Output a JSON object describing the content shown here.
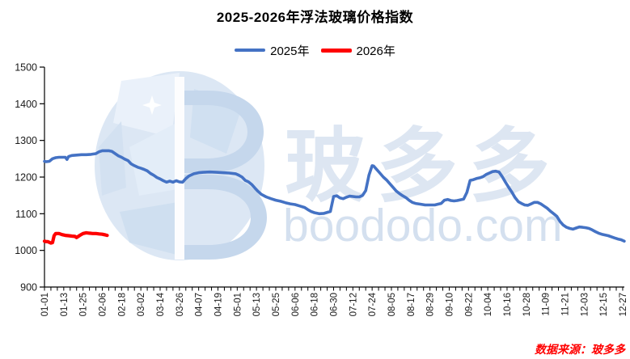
{
  "title": "2025-2026年浮法玻璃价格指数",
  "legend": {
    "items": [
      {
        "label": "2025年",
        "color": "#4472C4"
      },
      {
        "label": "2026年",
        "color": "#FE0000"
      }
    ]
  },
  "source_note": "数据来源：玻多多",
  "watermark": {
    "letter": "B",
    "cn_text": "玻多多",
    "domain_text": "boododo.com",
    "color": "#c2d3e9"
  },
  "colors": {
    "axis": "#000000",
    "tick_label": "#1a1a1a",
    "series_2025": "#4472C4",
    "series_2026": "#FE0000",
    "globe_base": "#dce7f4"
  },
  "chart_data": {
    "type": "line",
    "title": "2025-2026年浮法玻璃价格指数",
    "xlabel": "",
    "ylabel": "",
    "grid": false,
    "legend_position": "top-center",
    "y_axis": {
      "min": 900,
      "max": 1500,
      "tick_step": 100,
      "tick_labels": [
        "900",
        "1000",
        "1100",
        "1200",
        "1300",
        "1400",
        "1500"
      ]
    },
    "x_axis": {
      "minor_tick_interval_days": 4,
      "tick_labels": [
        "01-01",
        "01-13",
        "01-25",
        "02-06",
        "02-18",
        "03-02",
        "03-14",
        "03-26",
        "04-07",
        "04-19",
        "05-01",
        "05-13",
        "05-25",
        "06-06",
        "06-18",
        "06-30",
        "07-12",
        "07-24",
        "08-05",
        "08-17",
        "08-29",
        "09-10",
        "09-22",
        "10-04",
        "10-16",
        "10-28",
        "11-09",
        "11-21",
        "12-03",
        "12-15",
        "12-27"
      ]
    },
    "series": [
      {
        "name": "2025年",
        "color": "#4472C4",
        "points": [
          [
            "01-01",
            1243
          ],
          [
            "01-02",
            1242
          ],
          [
            "01-04",
            1243
          ],
          [
            "01-06",
            1250
          ],
          [
            "01-08",
            1253
          ],
          [
            "01-10",
            1254
          ],
          [
            "01-12",
            1254
          ],
          [
            "01-14",
            1254
          ],
          [
            "01-15",
            1248
          ],
          [
            "01-16",
            1256
          ],
          [
            "01-18",
            1259
          ],
          [
            "01-21",
            1260
          ],
          [
            "01-24",
            1261
          ],
          [
            "01-27",
            1261
          ],
          [
            "01-30",
            1262
          ],
          [
            "02-02",
            1264
          ],
          [
            "02-04",
            1269
          ],
          [
            "02-06",
            1272
          ],
          [
            "02-08",
            1272
          ],
          [
            "02-10",
            1272
          ],
          [
            "02-12",
            1270
          ],
          [
            "02-14",
            1264
          ],
          [
            "02-16",
            1258
          ],
          [
            "02-18",
            1254
          ],
          [
            "02-20",
            1249
          ],
          [
            "02-22",
            1245
          ],
          [
            "02-24",
            1236
          ],
          [
            "02-26",
            1231
          ],
          [
            "02-28",
            1227
          ],
          [
            "03-02",
            1224
          ],
          [
            "03-04",
            1221
          ],
          [
            "03-06",
            1217
          ],
          [
            "03-08",
            1210
          ],
          [
            "03-10",
            1205
          ],
          [
            "03-12",
            1199
          ],
          [
            "03-14",
            1195
          ],
          [
            "03-16",
            1190
          ],
          [
            "03-18",
            1186
          ],
          [
            "03-20",
            1189
          ],
          [
            "03-22",
            1186
          ],
          [
            "03-24",
            1190
          ],
          [
            "03-26",
            1187
          ],
          [
            "03-28",
            1186
          ],
          [
            "03-30",
            1196
          ],
          [
            "04-01",
            1203
          ],
          [
            "04-04",
            1209
          ],
          [
            "04-07",
            1212
          ],
          [
            "04-10",
            1213
          ],
          [
            "04-14",
            1214
          ],
          [
            "04-18",
            1213
          ],
          [
            "04-22",
            1212
          ],
          [
            "04-26",
            1211
          ],
          [
            "04-30",
            1209
          ],
          [
            "05-02",
            1205
          ],
          [
            "05-04",
            1200
          ],
          [
            "05-06",
            1191
          ],
          [
            "05-08",
            1187
          ],
          [
            "05-10",
            1180
          ],
          [
            "05-12",
            1170
          ],
          [
            "05-14",
            1161
          ],
          [
            "05-16",
            1153
          ],
          [
            "05-19",
            1146
          ],
          [
            "05-22",
            1141
          ],
          [
            "05-25",
            1137
          ],
          [
            "05-28",
            1134
          ],
          [
            "05-31",
            1130
          ],
          [
            "06-03",
            1127
          ],
          [
            "06-06",
            1125
          ],
          [
            "06-09",
            1121
          ],
          [
            "06-12",
            1117
          ],
          [
            "06-14",
            1111
          ],
          [
            "06-16",
            1106
          ],
          [
            "06-18",
            1103
          ],
          [
            "06-21",
            1100
          ],
          [
            "06-24",
            1101
          ],
          [
            "06-27",
            1105
          ],
          [
            "06-28",
            1106
          ],
          [
            "06-30",
            1147
          ],
          [
            "07-02",
            1149
          ],
          [
            "07-04",
            1143
          ],
          [
            "07-06",
            1141
          ],
          [
            "07-08",
            1145
          ],
          [
            "07-10",
            1148
          ],
          [
            "07-12",
            1147
          ],
          [
            "07-14",
            1146
          ],
          [
            "07-16",
            1146
          ],
          [
            "07-18",
            1150
          ],
          [
            "07-20",
            1163
          ],
          [
            "07-22",
            1205
          ],
          [
            "07-24",
            1231
          ],
          [
            "07-25",
            1230
          ],
          [
            "07-27",
            1220
          ],
          [
            "07-29",
            1210
          ],
          [
            "07-31",
            1200
          ],
          [
            "08-02",
            1192
          ],
          [
            "08-04",
            1182
          ],
          [
            "08-06",
            1172
          ],
          [
            "08-08",
            1162
          ],
          [
            "08-10",
            1155
          ],
          [
            "08-12",
            1149
          ],
          [
            "08-14",
            1144
          ],
          [
            "08-16",
            1137
          ],
          [
            "08-18",
            1131
          ],
          [
            "08-20",
            1128
          ],
          [
            "08-23",
            1126
          ],
          [
            "08-26",
            1124
          ],
          [
            "08-29",
            1124
          ],
          [
            "09-01",
            1124
          ],
          [
            "09-03",
            1126
          ],
          [
            "09-05",
            1128
          ],
          [
            "09-07",
            1137
          ],
          [
            "09-09",
            1139
          ],
          [
            "09-11",
            1136
          ],
          [
            "09-13",
            1135
          ],
          [
            "09-15",
            1136
          ],
          [
            "09-17",
            1138
          ],
          [
            "09-19",
            1140
          ],
          [
            "09-21",
            1158
          ],
          [
            "09-23",
            1191
          ],
          [
            "09-25",
            1193
          ],
          [
            "09-27",
            1196
          ],
          [
            "09-29",
            1198
          ],
          [
            "10-01",
            1201
          ],
          [
            "10-03",
            1207
          ],
          [
            "10-05",
            1211
          ],
          [
            "10-07",
            1215
          ],
          [
            "10-09",
            1216
          ],
          [
            "10-11",
            1214
          ],
          [
            "10-13",
            1201
          ],
          [
            "10-15",
            1186
          ],
          [
            "10-17",
            1172
          ],
          [
            "10-19",
            1159
          ],
          [
            "10-21",
            1144
          ],
          [
            "10-23",
            1133
          ],
          [
            "10-25",
            1128
          ],
          [
            "10-27",
            1124
          ],
          [
            "10-29",
            1123
          ],
          [
            "10-31",
            1127
          ],
          [
            "11-02",
            1131
          ],
          [
            "11-04",
            1131
          ],
          [
            "11-06",
            1127
          ],
          [
            "11-08",
            1121
          ],
          [
            "11-10",
            1115
          ],
          [
            "11-12",
            1107
          ],
          [
            "11-14",
            1100
          ],
          [
            "11-16",
            1093
          ],
          [
            "11-18",
            1079
          ],
          [
            "11-20",
            1069
          ],
          [
            "11-22",
            1063
          ],
          [
            "11-24",
            1060
          ],
          [
            "11-26",
            1058
          ],
          [
            "11-28",
            1061
          ],
          [
            "11-30",
            1064
          ],
          [
            "12-02",
            1063
          ],
          [
            "12-04",
            1062
          ],
          [
            "12-06",
            1060
          ],
          [
            "12-08",
            1056
          ],
          [
            "12-10",
            1051
          ],
          [
            "12-12",
            1047
          ],
          [
            "12-14",
            1044
          ],
          [
            "12-16",
            1042
          ],
          [
            "12-18",
            1040
          ],
          [
            "12-20",
            1037
          ],
          [
            "12-22",
            1034
          ],
          [
            "12-24",
            1031
          ],
          [
            "12-26",
            1029
          ],
          [
            "12-28",
            1025
          ]
        ]
      },
      {
        "name": "2026年",
        "color": "#FE0000",
        "points": [
          [
            "01-01",
            1025
          ],
          [
            "01-02",
            1024
          ],
          [
            "01-03",
            1024
          ],
          [
            "01-05",
            1020
          ],
          [
            "01-06",
            1021
          ],
          [
            "01-07",
            1040
          ],
          [
            "01-08",
            1046
          ],
          [
            "01-10",
            1046
          ],
          [
            "01-12",
            1043
          ],
          [
            "01-14",
            1041
          ],
          [
            "01-16",
            1040
          ],
          [
            "01-18",
            1039
          ],
          [
            "01-20",
            1038
          ],
          [
            "01-21",
            1035
          ],
          [
            "01-23",
            1041
          ],
          [
            "01-25",
            1046
          ],
          [
            "01-27",
            1048
          ],
          [
            "01-29",
            1047
          ],
          [
            "01-31",
            1046
          ],
          [
            "02-02",
            1046
          ],
          [
            "02-04",
            1045
          ],
          [
            "02-06",
            1044
          ],
          [
            "02-08",
            1042
          ],
          [
            "02-09",
            1041
          ]
        ]
      }
    ]
  }
}
